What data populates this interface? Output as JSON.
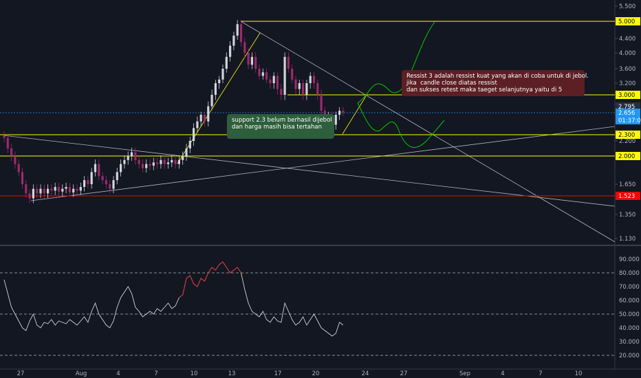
{
  "chart_data": {
    "type": "candlestick",
    "main_pane": {
      "y_axis_ticks": [
        "5.500",
        "4.400",
        "4.000",
        "3.600",
        "3.200",
        "2.600",
        "2.200",
        "1.650",
        "1.350",
        "1.130"
      ],
      "price_tags": [
        {
          "label": "5.000",
          "value": 5.0,
          "bg": "#ffff00",
          "fg": "#000000"
        },
        {
          "label": "3.000",
          "value": 3.0,
          "bg": "#ffff00",
          "fg": "#000000"
        },
        {
          "label": "2.795",
          "value": 2.795,
          "bg": "#2a2e39",
          "fg": "#ffffff"
        },
        {
          "label": "2.656",
          "value": 2.656,
          "bg": "#2196f3",
          "fg": "#ffffff"
        },
        {
          "label": "01:37:04",
          "value": 2.56,
          "bg": "#2196f3",
          "fg": "#ffffff"
        },
        {
          "label": "2.300",
          "value": 2.3,
          "bg": "#ffff00",
          "fg": "#000000"
        },
        {
          "label": "2.000",
          "value": 2.0,
          "bg": "#ffff00",
          "fg": "#000000"
        },
        {
          "label": "1.523",
          "value": 1.523,
          "bg": "#ff0000",
          "fg": "#ffffff"
        }
      ],
      "horizontal_levels": [
        {
          "value": 5.0,
          "color": "#ffff00"
        },
        {
          "value": 3.0,
          "color": "#ffff00"
        },
        {
          "value": 2.3,
          "color": "#ffff00"
        },
        {
          "value": 2.0,
          "color": "#ffff00"
        },
        {
          "value": 1.523,
          "color": "#ff0000"
        },
        {
          "value": 2.656,
          "color": "#2196f3",
          "dotted": true
        }
      ],
      "annotations": [
        {
          "id": "support",
          "text": "support 2.3 belum berhasil dijebol\ndan harga masih bisa tertahan"
        },
        {
          "id": "resist",
          "text": "Ressist 3 adalah ressist kuat yang akan di coba untuk di jebol.\njika  candle close diatas ressist\ndan sukses retest maka taeget selanjutnya yaitu di 5"
        }
      ]
    },
    "indicator_pane": {
      "y_axis_ticks": [
        "90.000",
        "80.000",
        "70.000",
        "60.000",
        "50.000",
        "40.000",
        "30.000",
        "20.000"
      ],
      "bands": [
        80,
        50,
        20
      ]
    },
    "x_axis_ticks": [
      "27",
      "Aug",
      "4",
      "7",
      "10",
      "13",
      "17",
      "20",
      "24",
      "27",
      "Sep",
      "4",
      "7",
      "10"
    ]
  }
}
